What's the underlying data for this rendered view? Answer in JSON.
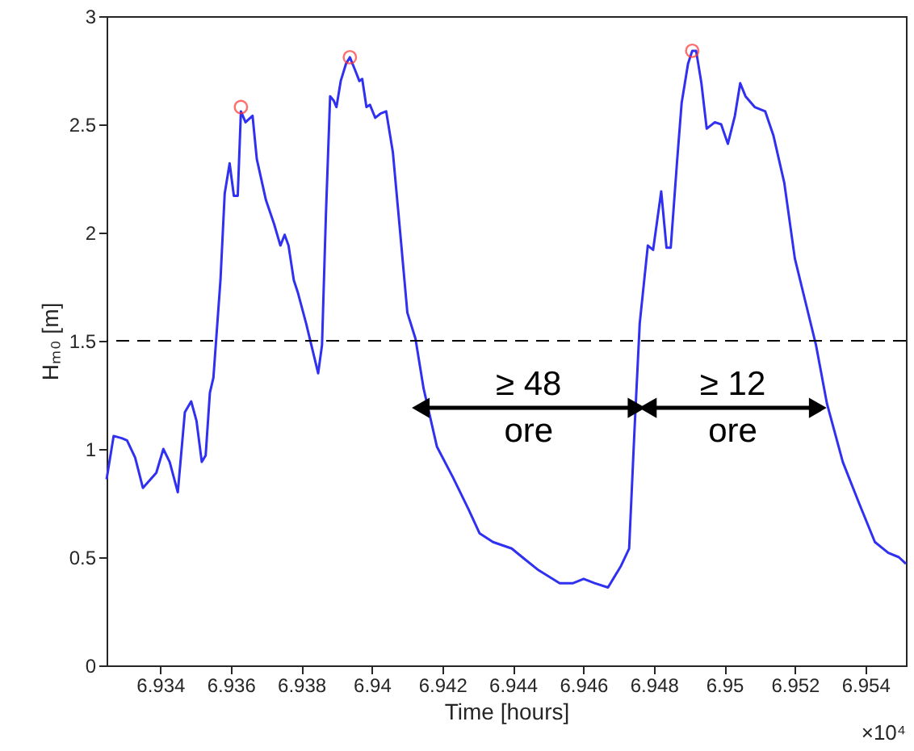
{
  "chart_data": {
    "type": "line",
    "xlabel": "Time [hours]",
    "ylabel": "Hₘ₀ [m]",
    "xlim": [
      6.93248,
      6.95515
    ],
    "ylim": [
      0,
      3
    ],
    "xticks": [
      6.934,
      6.936,
      6.938,
      6.94,
      6.942,
      6.944,
      6.946,
      6.948,
      6.95,
      6.952,
      6.954
    ],
    "yticks": [
      0,
      0.5,
      1,
      1.5,
      2,
      2.5,
      3
    ],
    "grid": false,
    "series": [
      {
        "color": "#3030f0",
        "x": [
          6.93248,
          6.93268,
          6.93291,
          6.93306,
          6.93329,
          6.93351,
          6.93389,
          6.93409,
          6.93427,
          6.9345,
          6.9347,
          6.93488,
          6.93503,
          6.93518,
          6.93529,
          6.93541,
          6.93551,
          6.93571,
          6.93583,
          6.93597,
          6.93609,
          6.9362,
          6.93629,
          6.93642,
          6.93662,
          6.93674,
          6.937,
          6.93723,
          6.93741,
          6.93753,
          6.93764,
          6.93779,
          6.93791,
          6.93814,
          6.93848,
          6.93859,
          6.9387,
          6.93882,
          6.93892,
          6.939,
          6.93912,
          6.93927,
          6.93938,
          6.93953,
          6.93965,
          6.93973,
          6.93985,
          6.93995,
          6.9401,
          6.94025,
          6.94041,
          6.9406,
          6.94079,
          6.94101,
          6.94124,
          6.94147,
          6.94185,
          6.9423,
          6.94275,
          6.94306,
          6.94344,
          6.94397,
          6.94427,
          6.94473,
          6.94533,
          6.94571,
          6.94601,
          6.94632,
          6.9467,
          6.94707,
          6.9473,
          6.94745,
          6.9476,
          6.94783,
          6.94798,
          6.94821,
          6.94836,
          6.94848,
          6.94866,
          6.94879,
          6.94897,
          6.94909,
          6.9492,
          6.94935,
          6.9495,
          6.94973,
          6.94991,
          6.9501,
          6.9503,
          6.95045,
          6.9506,
          6.95086,
          6.95116,
          6.95139,
          6.9517,
          6.952,
          6.9523,
          6.9526,
          6.95291,
          6.95336,
          6.95382,
          6.95427,
          6.95465,
          6.95495,
          6.95515
        ],
        "values": [
          0.86,
          1.06,
          1.05,
          1.04,
          0.96,
          0.82,
          0.89,
          1.0,
          0.94,
          0.8,
          1.17,
          1.22,
          1.13,
          0.94,
          0.97,
          1.26,
          1.33,
          1.78,
          2.18,
          2.32,
          2.17,
          2.17,
          2.56,
          2.51,
          2.54,
          2.34,
          2.15,
          2.04,
          1.94,
          1.99,
          1.94,
          1.78,
          1.72,
          1.58,
          1.35,
          1.48,
          2.08,
          2.63,
          2.61,
          2.58,
          2.7,
          2.78,
          2.81,
          2.75,
          2.7,
          2.71,
          2.58,
          2.59,
          2.53,
          2.55,
          2.56,
          2.37,
          2.03,
          1.63,
          1.51,
          1.28,
          1.01,
          0.87,
          0.72,
          0.61,
          0.57,
          0.54,
          0.5,
          0.44,
          0.38,
          0.38,
          0.4,
          0.38,
          0.36,
          0.46,
          0.54,
          1.08,
          1.58,
          1.94,
          1.92,
          2.19,
          1.93,
          1.93,
          2.33,
          2.6,
          2.78,
          2.84,
          2.84,
          2.69,
          2.48,
          2.51,
          2.5,
          2.41,
          2.54,
          2.69,
          2.63,
          2.58,
          2.56,
          2.45,
          2.23,
          1.88,
          1.68,
          1.48,
          1.21,
          0.94,
          0.75,
          0.57,
          0.52,
          0.5,
          0.47
        ]
      },
      {
        "type": "scatter",
        "color": "#ff3030",
        "marker": "circle",
        "x": [
          6.93629,
          6.93938,
          6.94909
        ],
        "values": [
          2.58,
          2.81,
          2.84
        ]
      },
      {
        "type": "line",
        "color": "#000000",
        "marker": "triangle",
        "x": [
          6.94139,
          6.94751
        ],
        "values": [
          1.19,
          1.19
        ]
      },
      {
        "type": "line",
        "color": "#000000",
        "marker": "triangle",
        "x": [
          6.94783,
          6.95265
        ],
        "values": [
          1.19,
          1.19
        ]
      }
    ],
    "ref_lines": [
      {
        "axis": "y",
        "value": 1.5,
        "color": "#000000",
        "line_style": "dashed"
      }
    ],
    "annotations": [
      {
        "text": "≥ 48\nore",
        "x": 6.94445,
        "y": 1.19
      },
      {
        "text": "≥ 12\nore",
        "x": 6.95024,
        "y": 1.19
      },
      "×10⁴"
    ]
  }
}
